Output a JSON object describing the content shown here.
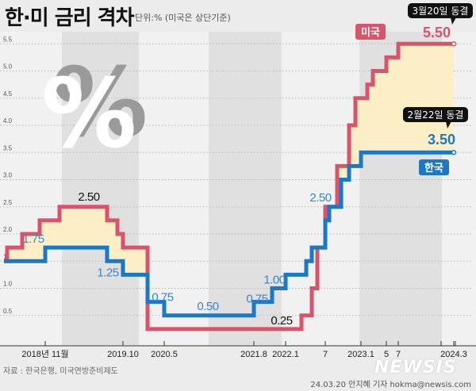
{
  "header": {
    "title": "한·미 금리 격차",
    "subtitle": "단위:% (미국은 상단기준)"
  },
  "footer": {
    "source": "자료 : 한국은행, 미국연방준비제도",
    "credit": "24.03.20 안지혜 기자 hokma@newsis.com",
    "logo": "NEWSIS"
  },
  "chart_data": {
    "type": "line",
    "step": true,
    "title": "한·미 금리 격차",
    "ylabel": "단위:% (미국은 상단기준)",
    "ylim": [
      0,
      5.5
    ],
    "yticks": [
      "0.5",
      "1.0",
      "1.5",
      "2.0",
      "2.5",
      "3.0",
      "3.5",
      "4.0",
      "4.5",
      "5.0",
      "5.5"
    ],
    "xticks": [
      {
        "date": "2018-11",
        "label": "2018년 11월"
      },
      {
        "date": "2019-10",
        "label": "2019.10"
      },
      {
        "date": "2020-05",
        "label": "2020.5"
      },
      {
        "date": "2021-08",
        "label": "2021.8"
      },
      {
        "date": "2022-01",
        "label": "2022.1"
      },
      {
        "date": "2022-07",
        "label": "7"
      },
      {
        "date": "2023-01",
        "label": "2023.1"
      },
      {
        "date": "2023-05",
        "label": "5"
      },
      {
        "date": "2023-07",
        "label": "7"
      },
      {
        "date": "2024-03",
        "label": "2024.3"
      }
    ],
    "grid": true,
    "fill_between_color": "#fcefc6",
    "series": [
      {
        "name": "미국",
        "color": "#d9546a",
        "end_value_label": "5.50",
        "callout": "3월20일 동결",
        "steps": [
          [
            "2017-12",
            1.5
          ],
          [
            "2018-03",
            1.75
          ],
          [
            "2018-06",
            2.0
          ],
          [
            "2018-09",
            2.25
          ],
          [
            "2018-12",
            2.5
          ],
          [
            "2019-07",
            2.25
          ],
          [
            "2019-09",
            2.0
          ],
          [
            "2019-10",
            1.75
          ],
          [
            "2020-03",
            0.25
          ],
          [
            "2022-03",
            0.5
          ],
          [
            "2022-05",
            1.0
          ],
          [
            "2022-06",
            1.75
          ],
          [
            "2022-07",
            2.5
          ],
          [
            "2022-09",
            3.25
          ],
          [
            "2022-11",
            4.0
          ],
          [
            "2022-12",
            4.5
          ],
          [
            "2023-02",
            4.75
          ],
          [
            "2023-03",
            5.0
          ],
          [
            "2023-05",
            5.25
          ],
          [
            "2023-07",
            5.5
          ],
          [
            "2024-03",
            5.5
          ]
        ]
      },
      {
        "name": "한국",
        "color": "#1a78c6",
        "end_value_label": "3.50",
        "callout": "2월22일 동결",
        "steps": [
          [
            "2017-12",
            1.5
          ],
          [
            "2018-11",
            1.75
          ],
          [
            "2019-07",
            1.5
          ],
          [
            "2019-10",
            1.25
          ],
          [
            "2020-03",
            0.75
          ],
          [
            "2020-05",
            0.5
          ],
          [
            "2021-08",
            0.75
          ],
          [
            "2021-11",
            1.0
          ],
          [
            "2022-01",
            1.25
          ],
          [
            "2022-04",
            1.5
          ],
          [
            "2022-05",
            1.75
          ],
          [
            "2022-07",
            2.25
          ],
          [
            "2022-08",
            2.5
          ],
          [
            "2022-10",
            3.0
          ],
          [
            "2022-11",
            3.25
          ],
          [
            "2023-01",
            3.5
          ],
          [
            "2024-03",
            3.5
          ]
        ]
      }
    ],
    "annotations": [
      {
        "text": "2.50",
        "color": "#111111",
        "date": "2019-03",
        "value": 2.5
      },
      {
        "text": "1.75",
        "color": "#3a86c8",
        "date": "2018-11",
        "value": 1.75
      },
      {
        "text": "1.25",
        "color": "#3a86c8",
        "date": "2019-10",
        "value": 1.25
      },
      {
        "text": "0.75",
        "color": "#3a86c8",
        "date": "2020-04",
        "value": 0.75
      },
      {
        "text": "0.50",
        "color": "#3a86c8",
        "date": "2021-01",
        "value": 0.5
      },
      {
        "text": "0.75",
        "color": "#3a86c8",
        "date": "2021-08",
        "value": 0.75
      },
      {
        "text": "1.00",
        "color": "#3a86c8",
        "date": "2021-11",
        "value": 1.0
      },
      {
        "text": "0.25",
        "color": "#111111",
        "date": "2022-01",
        "value": 0.25
      },
      {
        "text": "2.50",
        "color": "#3a86c8",
        "date": "2022-07",
        "value": 2.5
      }
    ]
  }
}
